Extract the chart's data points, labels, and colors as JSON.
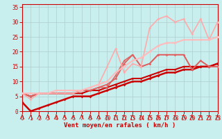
{
  "xlabel": "Vent moyen/en rafales ( km/h )",
  "bg_color": "#c8eeee",
  "grid_color": "#b0cccc",
  "xlim": [
    0,
    23
  ],
  "ylim": [
    0,
    36
  ],
  "yticks": [
    0,
    5,
    10,
    15,
    20,
    25,
    30,
    35
  ],
  "xticks": [
    0,
    1,
    2,
    3,
    4,
    5,
    6,
    7,
    8,
    9,
    10,
    11,
    12,
    13,
    14,
    15,
    16,
    17,
    18,
    19,
    20,
    21,
    22,
    23
  ],
  "lines": [
    {
      "x": [
        0,
        1,
        2,
        3,
        4,
        5,
        6,
        7,
        8,
        9,
        10,
        11,
        12,
        13,
        14,
        15,
        16,
        17,
        18,
        19,
        20,
        21,
        22,
        23
      ],
      "y": [
        3,
        0,
        1,
        2,
        3,
        4,
        5,
        5,
        5,
        6,
        7,
        8,
        9,
        10,
        10,
        11,
        12,
        13,
        13,
        14,
        14,
        15,
        15,
        16
      ],
      "color": "#cc0000",
      "lw": 1.8,
      "marker": "D",
      "ms": 2.0
    },
    {
      "x": [
        0,
        1,
        2,
        3,
        4,
        5,
        6,
        7,
        8,
        9,
        10,
        11,
        12,
        13,
        14,
        15,
        16,
        17,
        18,
        19,
        20,
        21,
        22,
        23
      ],
      "y": [
        6,
        5,
        6,
        6,
        6,
        6,
        6,
        6,
        7,
        7,
        8,
        9,
        10,
        11,
        11,
        12,
        13,
        14,
        14,
        15,
        15,
        15,
        15,
        16
      ],
      "color": "#cc0000",
      "lw": 1.5,
      "marker": "D",
      "ms": 1.8
    },
    {
      "x": [
        0,
        1,
        2,
        3,
        4,
        5,
        6,
        7,
        8,
        9,
        10,
        11,
        12,
        13,
        14,
        15,
        16,
        17,
        18,
        19,
        20,
        21,
        22,
        23
      ],
      "y": [
        6,
        5,
        6,
        6,
        6,
        6,
        6,
        7,
        7,
        8,
        9,
        11,
        16,
        19,
        15,
        16,
        19,
        19,
        19,
        19,
        14,
        17,
        15,
        15
      ],
      "color": "#e06060",
      "lw": 1.3,
      "marker": "D",
      "ms": 1.8
    },
    {
      "x": [
        0,
        1,
        2,
        3,
        4,
        5,
        6,
        7,
        8,
        9,
        10,
        11,
        12,
        13,
        14,
        15,
        16,
        17,
        18,
        19,
        20,
        21,
        22,
        23
      ],
      "y": [
        6,
        5,
        6,
        6,
        6,
        6,
        6,
        7,
        7,
        8,
        8,
        12,
        17,
        19,
        15,
        16,
        19,
        19,
        19,
        19,
        14,
        17,
        15,
        15
      ],
      "color": "#e06060",
      "lw": 1.1,
      "marker": "D",
      "ms": 1.5
    },
    {
      "x": [
        0,
        1,
        2,
        3,
        4,
        5,
        6,
        7,
        8,
        9,
        10,
        11,
        12,
        13,
        14,
        15,
        16,
        17,
        18,
        19,
        20,
        21,
        22,
        23
      ],
      "y": [
        6,
        4,
        6,
        6,
        6,
        6,
        6,
        7,
        8,
        9,
        15,
        21,
        13,
        16,
        15,
        28,
        31,
        32,
        30,
        31,
        26,
        31,
        24,
        30
      ],
      "color": "#ffaaaa",
      "lw": 1.2,
      "marker": "D",
      "ms": 1.8
    },
    {
      "x": [
        0,
        1,
        2,
        3,
        4,
        5,
        6,
        7,
        8,
        9,
        10,
        11,
        12,
        13,
        14,
        15,
        16,
        17,
        18,
        19,
        20,
        21,
        22,
        23
      ],
      "y": [
        6,
        6,
        6,
        6,
        7,
        7,
        7,
        7,
        8,
        9,
        10,
        13,
        15,
        17,
        18,
        20,
        22,
        23,
        23,
        24,
        24,
        24,
        24,
        25
      ],
      "color": "#ffbbbb",
      "lw": 1.5,
      "marker": "D",
      "ms": 1.8
    }
  ],
  "xlabel_fontsize": 6.5,
  "ytick_fontsize": 5.5,
  "xtick_fontsize": 5.5
}
